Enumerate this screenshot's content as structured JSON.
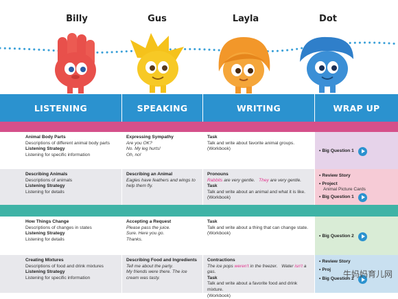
{
  "characters": [
    {
      "name": "Billy",
      "icon": "hand-shaped-red-character-icon",
      "color": "#e8504b"
    },
    {
      "name": "Gus",
      "icon": "spiky-yellow-character-icon",
      "color": "#f5c21b"
    },
    {
      "name": "Layla",
      "icon": "orange-haired-character-icon",
      "color": "#f2972a"
    },
    {
      "name": "Dot",
      "icon": "blue-blob-character-icon",
      "color": "#3b8fd6"
    }
  ],
  "columns": [
    "LISTENING",
    "SPEAKING",
    "WRITING",
    "WRAP UP"
  ],
  "colors": {
    "header": "#2b92cf",
    "band_pink": "#d5508a",
    "band_teal": "#3fb3a6",
    "row_light": "#ffffff",
    "row_grey": "#e8e8ec",
    "wrap_lilac": "#e6d3ea",
    "wrap_pink": "#f6cbd6",
    "wrap_green": "#d9ecd6",
    "wrap_blue": "#c9e0f0"
  },
  "rows": [
    {
      "listening": {
        "title": "Animal Body Parts",
        "desc": "Descriptions of different animal body parts",
        "strategy": "Listening Strategy",
        "strategy_desc": "Listening for specific information"
      },
      "speaking": {
        "title": "Expressing Sympathy",
        "lines": [
          "Are you OK?",
          "No. My leg hurts!",
          "Oh, no!"
        ]
      },
      "writing": {
        "task": "Task",
        "task_desc": "Talk and write about favorite animal groups.",
        "workbook": "(Workbook)"
      },
      "wrap": {
        "bq": "Big Question 1"
      }
    },
    {
      "listening": {
        "title": "Describing Animals",
        "desc": "Descriptions of animals",
        "strategy": "Listening Strategy",
        "strategy_desc": "Listening for details"
      },
      "speaking": {
        "title": "Describing an Animal",
        "lines": [
          "Eagles have feathers and wings to help them fly."
        ]
      },
      "writing": {
        "grammar": "Pronouns",
        "ex1_a": "Rabbits",
        "ex1_b": " are very gentle.",
        "ex2_a": "They",
        "ex2_b": " are very gentle.",
        "task": "Task",
        "task_desc": "Talk and write about an animal and what it is like.",
        "workbook": "(Workbook)"
      },
      "wrap": {
        "review": "Review Story",
        "project": "Project",
        "project_desc": "Animal Picture Cards",
        "bq": "Big Question 1"
      }
    },
    {
      "listening": {
        "title": "How Things Change",
        "desc": "Descriptions of changes in states",
        "strategy": "Listening Strategy",
        "strategy_desc": "Listening for details"
      },
      "speaking": {
        "title": "Accepting a Request",
        "lines": [
          "Please pass the juice.",
          "Sure. Here you go.",
          "Thanks."
        ]
      },
      "writing": {
        "task": "Task",
        "task_desc": "Talk and write about a thing that can change state.",
        "workbook": "(Workbook)"
      },
      "wrap": {
        "bq": "Big Question 2"
      }
    },
    {
      "listening": {
        "title": "Creating Mixtures",
        "desc": "Descriptions of food and drink mixtures",
        "strategy": "Listening Strategy",
        "strategy_desc": "Listening for specific information"
      },
      "speaking": {
        "title": "Describing Food and Ingredients",
        "lines": [
          "Tell me about the party.",
          "My friends were there. The ice cream was tasty."
        ]
      },
      "writing": {
        "grammar": "Contractions",
        "ex1_a": "The ice pops ",
        "ex1_b": "weren't",
        "ex1_c": " in the freezer.",
        "ex2_a": "Water ",
        "ex2_b": "isn't",
        "ex2_c": " a gas.",
        "task": "Task",
        "task_desc": "Talk and write about a favorite food and drink mixture.",
        "workbook": "(Workbook)"
      },
      "wrap": {
        "review": "Review Story",
        "project": "Proj",
        "bq": "Big Question 2"
      }
    }
  ],
  "watermark": "牛妈妈育儿网"
}
